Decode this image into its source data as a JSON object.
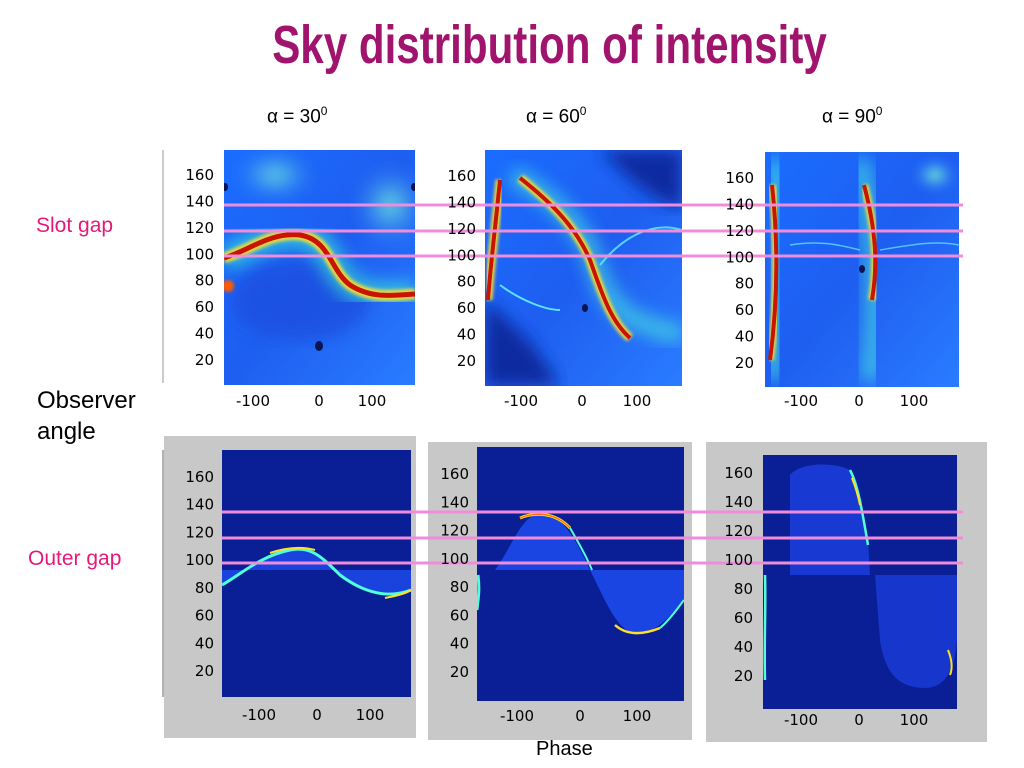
{
  "title": "Sky distribution of intensity",
  "colors": {
    "title": "#a0146e",
    "side_label": "#e6197a",
    "highlight_line": "#f08cdc",
    "map_background": "#0a1e96",
    "panel_background": "#c8c8c8"
  },
  "alpha_labels": [
    {
      "symbol": "α",
      "text": " = 30",
      "sup": "0"
    },
    {
      "symbol": "α",
      "text": " = 60",
      "sup": "0"
    },
    {
      "symbol": "α",
      "text": " = 90",
      "sup": "0"
    }
  ],
  "labels": {
    "slot_gap": "Slot gap",
    "observer_angle_line1": "Observer",
    "observer_angle_line2": "angle",
    "outer_gap": "Outer gap",
    "phase": "Phase"
  },
  "chart_data": [
    {
      "type": "heatmap",
      "model": "Slot gap",
      "alpha": "α = 30°",
      "ylabel": "Observer angle",
      "xlabel": "Phase",
      "yticks": [
        20,
        40,
        60,
        80,
        100,
        120,
        140,
        160
      ],
      "xticks": [
        -100,
        0,
        100
      ],
      "ylim": [
        0,
        180
      ],
      "xlim": [
        -180,
        180
      ],
      "colormap": "jet",
      "highlighted_angles": [
        100,
        120,
        140
      ],
      "bright_band": {
        "phase": [
          -180,
          -150,
          -100,
          -50,
          0,
          50,
          100,
          150,
          180
        ],
        "angle": [
          75,
          95,
          110,
          118,
          90,
          80,
          70,
          66,
          66
        ]
      }
    },
    {
      "type": "heatmap",
      "model": "Slot gap",
      "alpha": "α = 60°",
      "ylabel": "Observer angle",
      "xlabel": "Phase",
      "yticks": [
        20,
        40,
        60,
        80,
        100,
        120,
        140,
        160
      ],
      "xticks": [
        -100,
        0,
        100
      ],
      "ylim": [
        0,
        180
      ],
      "xlim": [
        -180,
        180
      ],
      "colormap": "jet",
      "highlighted_angles": [
        100,
        120,
        140
      ]
    },
    {
      "type": "heatmap",
      "model": "Slot gap",
      "alpha": "α = 90°",
      "ylabel": "Observer angle",
      "xlabel": "Phase",
      "yticks": [
        20,
        40,
        60,
        80,
        100,
        120,
        140,
        160
      ],
      "xticks": [
        -100,
        0,
        100
      ],
      "ylim": [
        0,
        180
      ],
      "xlim": [
        -180,
        180
      ],
      "colormap": "jet",
      "highlighted_angles": [
        100,
        120,
        140
      ]
    },
    {
      "type": "heatmap",
      "model": "Outer gap",
      "alpha": "α = 30°",
      "ylabel": "Observer angle",
      "xlabel": "Phase",
      "yticks": [
        20,
        40,
        60,
        80,
        100,
        120,
        140,
        160
      ],
      "xticks": [
        -100,
        0,
        100
      ],
      "ylim": [
        0,
        180
      ],
      "xlim": [
        -180,
        180
      ],
      "colormap": "jet",
      "highlighted_angles": [
        100,
        120,
        140
      ]
    },
    {
      "type": "heatmap",
      "model": "Outer gap",
      "alpha": "α = 60°",
      "ylabel": "Observer angle",
      "xlabel": "Phase",
      "yticks": [
        20,
        40,
        60,
        80,
        100,
        120,
        140,
        160
      ],
      "xticks": [
        -100,
        0,
        100
      ],
      "ylim": [
        0,
        180
      ],
      "xlim": [
        -180,
        180
      ],
      "colormap": "jet",
      "highlighted_angles": [
        100,
        120,
        140
      ]
    },
    {
      "type": "heatmap",
      "model": "Outer gap",
      "alpha": "α = 90°",
      "ylabel": "Observer angle",
      "xlabel": "Phase",
      "yticks": [
        20,
        40,
        60,
        80,
        100,
        120,
        140,
        160
      ],
      "xticks": [
        -100,
        0,
        100
      ],
      "ylim": [
        0,
        180
      ],
      "xlim": [
        -180,
        180
      ],
      "colormap": "jet",
      "highlighted_angles": [
        100,
        120,
        140
      ]
    }
  ]
}
